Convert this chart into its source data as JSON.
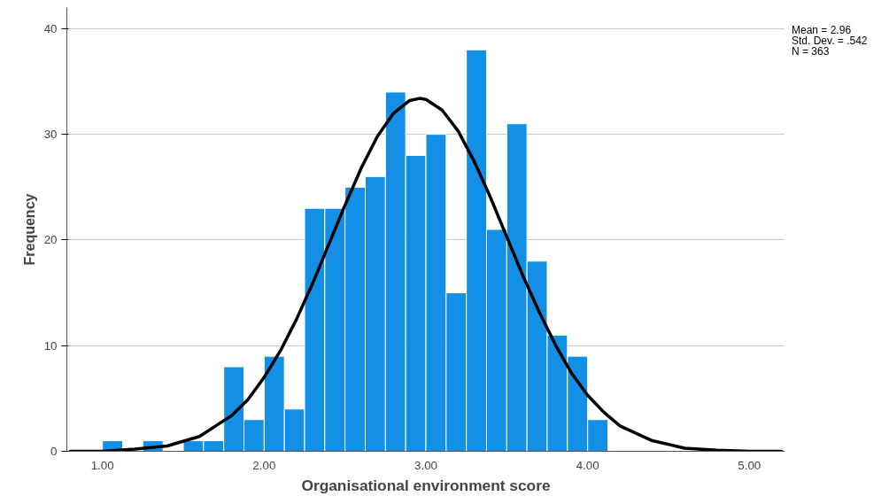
{
  "chart_data": {
    "type": "histogram",
    "xlabel": "Organisational environment score",
    "ylabel": "Frequency",
    "bins": [
      1.0,
      1.125,
      1.25,
      1.375,
      1.5,
      1.625,
      1.75,
      1.875,
      2.0,
      2.125,
      2.25,
      2.375,
      2.5,
      2.625,
      2.75,
      2.875,
      3.0,
      3.125,
      3.25,
      3.375,
      3.5,
      3.625,
      3.75,
      3.875,
      4.0,
      4.125
    ],
    "values": [
      1,
      0,
      1,
      0,
      1,
      1,
      8,
      3,
      9,
      4,
      23,
      23,
      25,
      26,
      34,
      28,
      30,
      15,
      38,
      21,
      31,
      18,
      11,
      9,
      3
    ],
    "color": "#1390e6",
    "series": [
      {
        "type": "line",
        "color": "#000000",
        "x": [
          0.8,
          1.0,
          1.2,
          1.4,
          1.6,
          1.8,
          1.9,
          2.0,
          2.1,
          2.2,
          2.3,
          2.4,
          2.5,
          2.6,
          2.7,
          2.8,
          2.9,
          2.96,
          3.0,
          3.1,
          3.2,
          3.3,
          3.4,
          3.5,
          3.6,
          3.7,
          3.8,
          3.9,
          4.0,
          4.1,
          4.2,
          4.4,
          4.6,
          4.8,
          5.0,
          5.2
        ],
        "values": [
          0.0,
          0.0,
          0.2,
          0.5,
          1.4,
          3.4,
          4.9,
          7.0,
          9.5,
          12.5,
          15.9,
          19.6,
          23.3,
          26.8,
          29.8,
          32.0,
          33.2,
          33.4,
          33.3,
          32.3,
          30.3,
          27.4,
          24.0,
          20.3,
          16.6,
          13.2,
          10.1,
          7.4,
          5.3,
          3.7,
          2.4,
          1.0,
          0.3,
          0.1,
          0.0,
          0.0
        ]
      }
    ],
    "xlim": [
      0.78,
      5.22
    ],
    "ylim": [
      0,
      42
    ],
    "xticks": [
      {
        "value": 1,
        "label": "1.00"
      },
      {
        "value": 2,
        "label": "2.00"
      },
      {
        "value": 3,
        "label": "3.00"
      },
      {
        "value": 4,
        "label": "4.00"
      },
      {
        "value": 5,
        "label": "5.00"
      }
    ],
    "yticks": [
      0,
      10,
      20,
      30,
      40
    ],
    "grid": "y",
    "annotations": [
      "Mean = 2.96",
      "Std. Dev. = .542",
      "N = 363"
    ]
  }
}
